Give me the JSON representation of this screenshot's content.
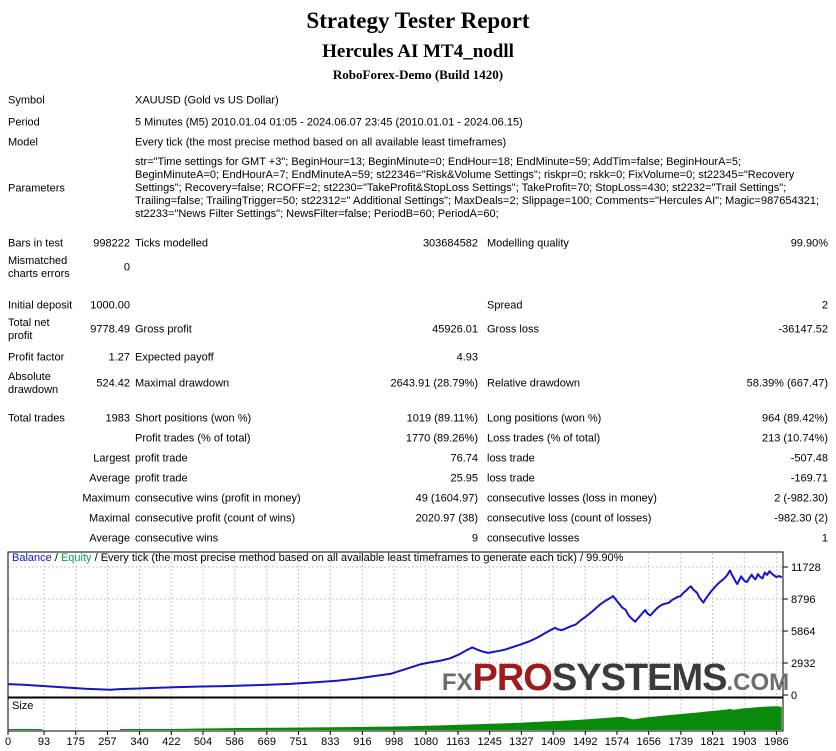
{
  "header": {
    "title": "Strategy Tester Report",
    "subtitle": "Hercules AI MT4_nodll",
    "server": "RoboForex-Demo (Build 1420)"
  },
  "info": {
    "rows": [
      {
        "label": "Symbol",
        "value": "XAUUSD (Gold vs US Dollar)"
      },
      {
        "label": "Period",
        "value": "5 Minutes (M5) 2010.01.04 01:05 - 2024.06.07 23:45 (2010.01.01 - 2024.06.15)"
      },
      {
        "label": "Model",
        "value": "Every tick (the most precise method based on all available least timeframes)"
      },
      {
        "label": "Parameters",
        "value": "str=\"Time settings for GMT +3\"; BeginHour=13; BeginMinute=0; EndHour=18; EndMinute=59; AddTim=false; BeginHourA=5; BeginMinuteA=0; EndHourA=7; EndMinuteA=59; st22346=\"Risk&Volume Settings\"; riskpr=0; rskk=0; FixVolume=0; st22345=\"Recovery Settings\"; Recovery=false; RCOFF=2; st2230=\"TakeProfit&StopLoss Settings\"; TakeProfit=70; StopLoss=430; st2232=\"Trail Settings\"; Trailing=false; TrailingTrigger=50; st22312=\" Additional Settings\"; MaxDeals=2; Slippage=100; Comments=\"Hercules AI\"; Magic=987654321; st2233=\"News Filter Settings\"; NewsFilter=false; PeriodB=60; PeriodA=60;"
      }
    ]
  },
  "stats": {
    "rows": [
      {
        "c1l": "Bars in test",
        "c1v": "998222",
        "c2l": "Ticks modelled",
        "c2v": "303684582",
        "c3l": "Modelling quality",
        "c3v": "99.90%"
      },
      {
        "c1l": "Mismatched charts errors",
        "c1v": "0"
      },
      {
        "c1l": "Initial deposit",
        "c1v": "1000.00",
        "c3l": "Spread",
        "c3v": "2"
      },
      {
        "c1l": "Total net profit",
        "c1v": "9778.49",
        "c2l": "Gross profit",
        "c2v": "45926.01",
        "c3l": "Gross loss",
        "c3v": "-36147.52"
      },
      {
        "c1l": "Profit factor",
        "c1v": "1.27",
        "c2l": "Expected payoff",
        "c2v": "4.93"
      },
      {
        "c1l": "Absolute drawdown",
        "c1v": "524.42",
        "c2l": "Maximal drawdown",
        "c2v": "2643.91 (28.79%)",
        "c3l": "Relative drawdown",
        "c3v": "58.39% (667.47)"
      },
      {
        "c1l": "Total trades",
        "c1v": "1983",
        "c2l": "Short positions (won %)",
        "c2v": "1019 (89.11%)",
        "c3l": "Long positions (won %)",
        "c3v": "964 (89.42%)"
      },
      {
        "c2l": "Profit trades (% of total)",
        "c2v": "1770 (89.26%)",
        "c3l": "Loss trades (% of total)",
        "c3v": "213 (10.74%)"
      },
      {
        "c1v": "Largest",
        "c2l": "profit trade",
        "c2v": "76.74",
        "c3l": "loss trade",
        "c3v": "-507.48"
      },
      {
        "c1v": "Average",
        "c2l": "profit trade",
        "c2v": "25.95",
        "c3l": "loss trade",
        "c3v": "-169.71"
      },
      {
        "c1v": "Maximum",
        "c2l": "consecutive wins (profit in money)",
        "c2v": "49 (1604.97)",
        "c3l": "consecutive losses (loss in money)",
        "c3v": "2 (-982.30)"
      },
      {
        "c1v": "Maximal",
        "c2l": "consecutive profit (count of wins)",
        "c2v": "2020.97 (38)",
        "c3l": "consecutive loss (count of losses)",
        "c3v": "-982.30 (2)"
      },
      {
        "c1v": "Average",
        "c2l": "consecutive wins",
        "c2v": "9",
        "c3l": "consecutive losses",
        "c3v": "1"
      }
    ]
  },
  "watermark": {
    "fx": "FX",
    "pro": "PRO",
    "systems": "SYSTEMS",
    "com": ".COM",
    "colors": {
      "fx": "#6d6d6d",
      "pro": "#9e1b1b",
      "systems": "#3b3b3b",
      "com": "#6d6d6d"
    }
  },
  "chart_data": {
    "type": "line",
    "legend": {
      "balance": "Balance",
      "sep1": " / ",
      "equity": "Equity",
      "sep2": " / ",
      "rest": "Every tick (the most precise method based on all available least timeframes to generate each tick) / 99.90%"
    },
    "size_panel_label": "Size",
    "y_ticks": [
      0,
      2932,
      5864,
      8796,
      11728
    ],
    "x_ticks": [
      0,
      93,
      175,
      257,
      340,
      422,
      504,
      586,
      669,
      751,
      833,
      916,
      998,
      1080,
      1163,
      1245,
      1327,
      1409,
      1492,
      1574,
      1656,
      1739,
      1821,
      1903,
      1986
    ],
    "xlim": [
      0,
      2003
    ],
    "ylim": [
      0,
      13100
    ],
    "grid": true,
    "series": [
      {
        "name": "Balance",
        "points": [
          [
            0,
            1000
          ],
          [
            40,
            930
          ],
          [
            80,
            850
          ],
          [
            120,
            760
          ],
          [
            160,
            660
          ],
          [
            200,
            570
          ],
          [
            240,
            510
          ],
          [
            264,
            490
          ],
          [
            290,
            540
          ],
          [
            330,
            590
          ],
          [
            370,
            640
          ],
          [
            410,
            690
          ],
          [
            450,
            730
          ],
          [
            500,
            780
          ],
          [
            560,
            820
          ],
          [
            620,
            880
          ],
          [
            680,
            950
          ],
          [
            729,
            1020
          ],
          [
            790,
            1150
          ],
          [
            850,
            1300
          ],
          [
            900,
            1500
          ],
          [
            950,
            1750
          ],
          [
            990,
            1950
          ],
          [
            1030,
            2400
          ],
          [
            1065,
            2800
          ],
          [
            1090,
            2980
          ],
          [
            1120,
            3160
          ],
          [
            1143,
            3360
          ],
          [
            1165,
            3700
          ],
          [
            1185,
            4100
          ],
          [
            1200,
            4360
          ],
          [
            1215,
            4120
          ],
          [
            1230,
            3950
          ],
          [
            1241,
            3860
          ],
          [
            1255,
            3950
          ],
          [
            1270,
            4050
          ],
          [
            1285,
            4160
          ],
          [
            1305,
            4400
          ],
          [
            1325,
            4640
          ],
          [
            1350,
            4960
          ],
          [
            1370,
            5300
          ],
          [
            1390,
            5700
          ],
          [
            1405,
            6000
          ],
          [
            1414,
            6160
          ],
          [
            1422,
            6000
          ],
          [
            1432,
            5950
          ],
          [
            1442,
            6100
          ],
          [
            1455,
            6300
          ],
          [
            1467,
            6450
          ],
          [
            1479,
            6820
          ],
          [
            1492,
            7150
          ],
          [
            1505,
            7500
          ],
          [
            1518,
            7900
          ],
          [
            1531,
            8320
          ],
          [
            1545,
            8650
          ],
          [
            1557,
            8900
          ],
          [
            1564,
            9060
          ],
          [
            1572,
            8700
          ],
          [
            1580,
            8350
          ],
          [
            1588,
            8000
          ],
          [
            1596,
            7820
          ],
          [
            1604,
            7300
          ],
          [
            1612,
            7000
          ],
          [
            1621,
            6720
          ],
          [
            1630,
            7100
          ],
          [
            1640,
            7500
          ],
          [
            1647,
            7780
          ],
          [
            1653,
            7450
          ],
          [
            1660,
            7280
          ],
          [
            1668,
            7600
          ],
          [
            1676,
            7900
          ],
          [
            1684,
            8150
          ],
          [
            1692,
            8300
          ],
          [
            1700,
            8380
          ],
          [
            1708,
            8450
          ],
          [
            1716,
            8700
          ],
          [
            1724,
            8850
          ],
          [
            1731,
            9000
          ],
          [
            1738,
            9050
          ],
          [
            1745,
            9350
          ],
          [
            1752,
            9550
          ],
          [
            1759,
            9800
          ],
          [
            1765,
            9960
          ],
          [
            1770,
            9700
          ],
          [
            1776,
            9500
          ],
          [
            1781,
            9360
          ],
          [
            1786,
            9000
          ],
          [
            1791,
            8750
          ],
          [
            1797,
            8470
          ],
          [
            1803,
            8800
          ],
          [
            1809,
            9100
          ],
          [
            1815,
            9400
          ],
          [
            1821,
            9650
          ],
          [
            1827,
            9900
          ],
          [
            1833,
            10120
          ],
          [
            1840,
            10350
          ],
          [
            1847,
            10550
          ],
          [
            1853,
            10750
          ],
          [
            1860,
            11050
          ],
          [
            1866,
            11420
          ],
          [
            1871,
            11000
          ],
          [
            1876,
            10700
          ],
          [
            1881,
            10350
          ],
          [
            1885,
            10170
          ],
          [
            1890,
            10550
          ],
          [
            1895,
            10880
          ],
          [
            1900,
            10600
          ],
          [
            1905,
            10420
          ],
          [
            1910,
            10350
          ],
          [
            1916,
            10700
          ],
          [
            1922,
            11020
          ],
          [
            1927,
            10750
          ],
          [
            1932,
            10600
          ],
          [
            1938,
            11080
          ],
          [
            1944,
            10820
          ],
          [
            1950,
            10680
          ],
          [
            1956,
            11220
          ],
          [
            1962,
            11000
          ],
          [
            1968,
            11340
          ],
          [
            1974,
            11120
          ],
          [
            1980,
            10950
          ],
          [
            1986,
            10800
          ],
          [
            1993,
            10900
          ],
          [
            2000,
            10780
          ]
        ]
      }
    ],
    "size_series": {
      "name": "Size",
      "units": "relative",
      "points": [
        [
          0,
          1
        ],
        [
          88,
          1
        ],
        [
          90,
          0
        ],
        [
          288,
          0
        ],
        [
          290,
          1
        ],
        [
          420,
          1
        ],
        [
          500,
          1.5
        ],
        [
          600,
          2
        ],
        [
          700,
          2.2
        ],
        [
          800,
          2.6
        ],
        [
          900,
          3
        ],
        [
          980,
          3.4
        ],
        [
          1030,
          3.8
        ],
        [
          1080,
          4.2
        ],
        [
          1130,
          4.8
        ],
        [
          1180,
          5.4
        ],
        [
          1230,
          6
        ],
        [
          1280,
          6.6
        ],
        [
          1330,
          7.4
        ],
        [
          1380,
          8.4
        ],
        [
          1420,
          9
        ],
        [
          1460,
          9.8
        ],
        [
          1500,
          10.8
        ],
        [
          1530,
          11.6
        ],
        [
          1550,
          12.2
        ],
        [
          1570,
          12.8
        ],
        [
          1585,
          13.2
        ],
        [
          1600,
          12
        ],
        [
          1615,
          10.6
        ],
        [
          1630,
          11.4
        ],
        [
          1645,
          12.4
        ],
        [
          1660,
          13
        ],
        [
          1680,
          13.8
        ],
        [
          1700,
          14.6
        ],
        [
          1720,
          15.2
        ],
        [
          1740,
          16
        ],
        [
          1760,
          16.8
        ],
        [
          1780,
          17.4
        ],
        [
          1800,
          18.2
        ],
        [
          1820,
          19
        ],
        [
          1840,
          19.8
        ],
        [
          1855,
          20.4
        ],
        [
          1866,
          21
        ],
        [
          1875,
          20.2
        ],
        [
          1885,
          20.8
        ],
        [
          1900,
          21.6
        ],
        [
          1915,
          22
        ],
        [
          1930,
          22.6
        ],
        [
          1945,
          23
        ],
        [
          1960,
          23.4
        ],
        [
          1975,
          23.6
        ],
        [
          1990,
          23.8
        ],
        [
          2000,
          23
        ]
      ]
    },
    "colors": {
      "balance": "#1515c8",
      "equity": "#00a550",
      "size_bars": "#0a8a0a",
      "grid": "#c8c8c8",
      "border": "#000000"
    }
  }
}
